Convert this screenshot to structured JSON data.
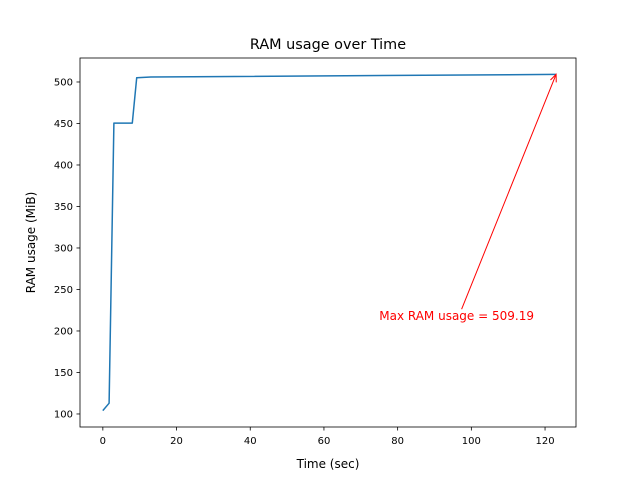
{
  "chart_data": {
    "type": "line",
    "title": "RAM usage over Time",
    "xlabel": "Time (sec)",
    "ylabel": "RAM usage (MiB)",
    "xlim": [
      -6.2,
      128.4
    ],
    "ylim": [
      84.3,
      528.9
    ],
    "xticks": [
      0,
      20,
      40,
      60,
      80,
      100,
      120
    ],
    "yticks": [
      100,
      150,
      200,
      250,
      300,
      350,
      400,
      450,
      500
    ],
    "grid": false,
    "series": [
      {
        "name": "RAM usage",
        "color": "#1f77b4",
        "x": [
          0,
          1.7,
          3,
          8,
          9.2,
          13,
          123
        ],
        "y": [
          104,
          113,
          450.5,
          450.5,
          505,
          506,
          509.19
        ]
      }
    ],
    "annotation": {
      "text": "Max RAM usage = 509.19",
      "color": "#ff0000",
      "point": [
        123,
        509.19
      ],
      "text_at": [
        96,
        213
      ]
    }
  }
}
